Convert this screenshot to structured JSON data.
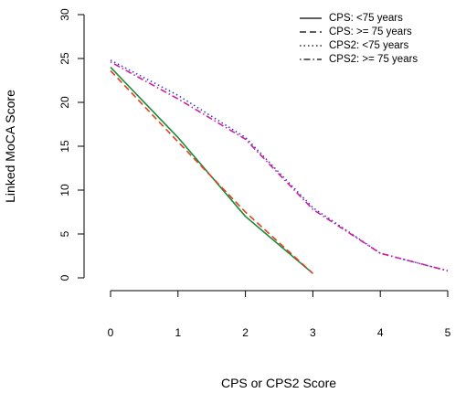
{
  "chart_data": {
    "type": "line",
    "xlabel": "CPS or CPS2 Score",
    "ylabel": "Linked MoCA Score",
    "xlim": [
      0,
      5
    ],
    "ylim": [
      0,
      30
    ],
    "x_ticks": [
      0,
      1,
      2,
      3,
      4,
      5
    ],
    "y_ticks": [
      0,
      5,
      10,
      15,
      20,
      25,
      30
    ],
    "grid": false,
    "legend_position": "top-right",
    "series": [
      {
        "name": "CPS: <75 years",
        "line_style": "solid",
        "color": "#1a8a3a",
        "x": [
          0,
          1,
          2,
          3
        ],
        "values": [
          24.0,
          16.0,
          7.0,
          0.5
        ]
      },
      {
        "name": "CPS: >= 75 years",
        "line_style": "dashed",
        "color": "#e0401f",
        "x": [
          0,
          1,
          2,
          3
        ],
        "values": [
          23.6,
          15.5,
          7.5,
          0.5
        ]
      },
      {
        "name": "CPS2: <75 years",
        "line_style": "dotted",
        "color": "#3a3ad0",
        "x": [
          0,
          1,
          2,
          3,
          4,
          5
        ],
        "values": [
          24.8,
          20.8,
          16.0,
          8.0,
          2.8,
          0.8
        ]
      },
      {
        "name": "CPS2: >= 75 years",
        "line_style": "dashdot",
        "color": "#d0209a",
        "x": [
          0,
          1,
          2,
          3,
          4,
          5
        ],
        "values": [
          24.6,
          20.4,
          15.8,
          7.8,
          2.8,
          0.8
        ]
      }
    ]
  }
}
